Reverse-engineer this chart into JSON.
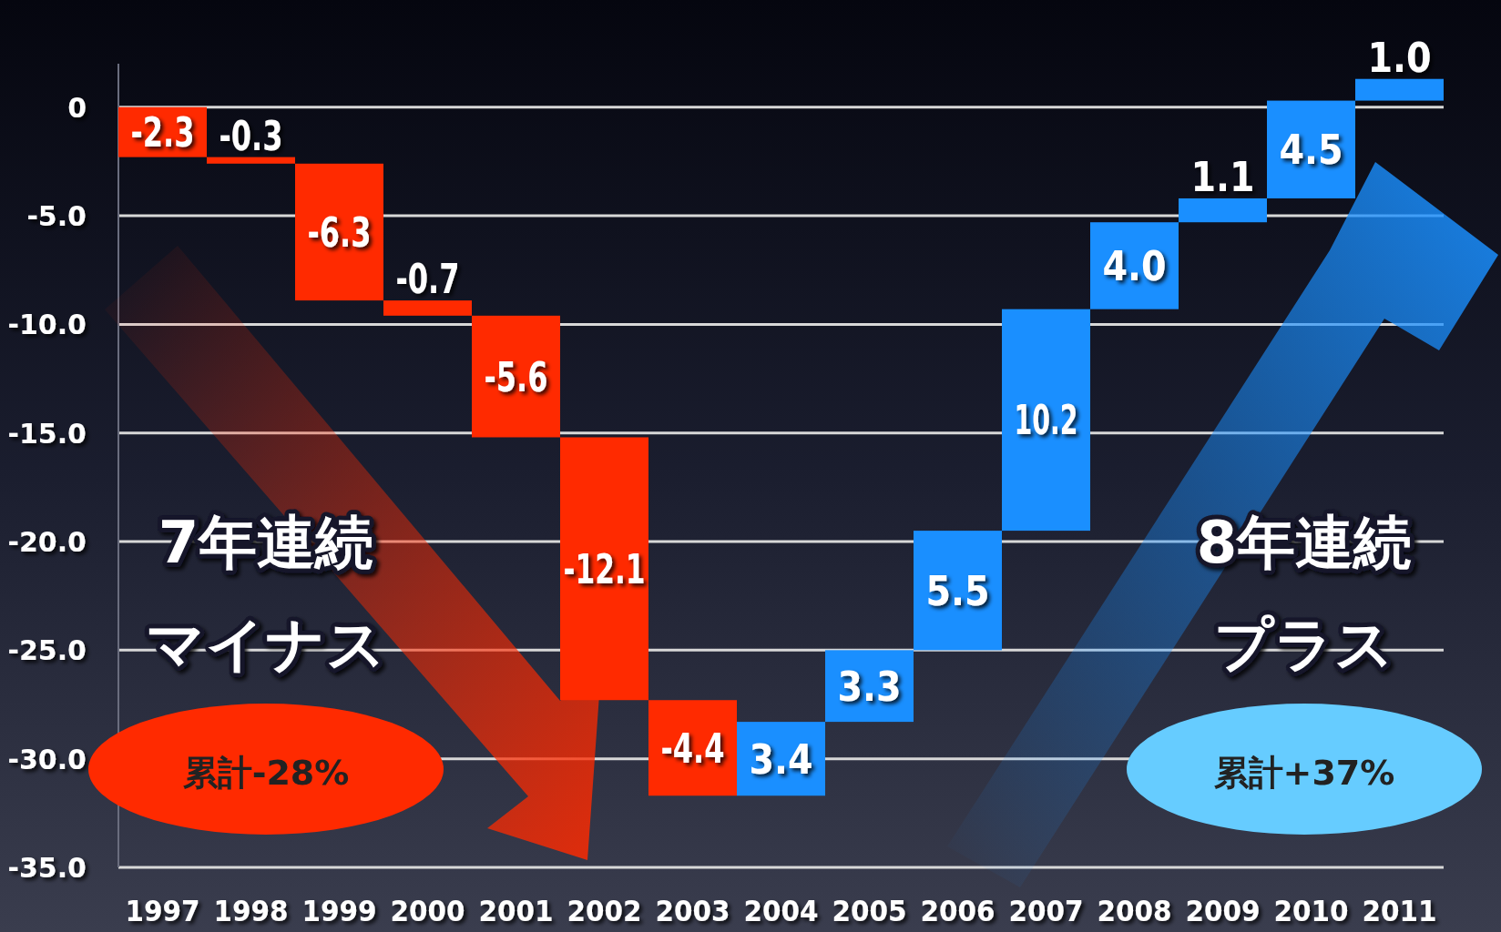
{
  "chart_data": {
    "type": "bar",
    "categories": [
      "1997",
      "1998",
      "1999",
      "2000",
      "2001",
      "2002",
      "2003",
      "2004",
      "2005",
      "2006",
      "2007",
      "2008",
      "2009",
      "2010",
      "2011"
    ],
    "values": [
      -2.3,
      -0.3,
      -6.3,
      -0.7,
      -5.6,
      -12.1,
      -4.4,
      3.4,
      3.3,
      5.5,
      10.2,
      4.0,
      1.1,
      4.5,
      1.0
    ],
    "base": [
      0,
      -2.3,
      -2.6,
      -8.9,
      -9.6,
      -15.2,
      -27.3,
      -31.7,
      -28.3,
      -25.0,
      -19.5,
      -9.3,
      -5.3,
      -4.2,
      0.3
    ],
    "colors": [
      "#ff2a00",
      "#ff2a00",
      "#ff2a00",
      "#ff2a00",
      "#ff2a00",
      "#ff2a00",
      "#ff2a00",
      "#1a8fff",
      "#1a8fff",
      "#1a8fff",
      "#1a8fff",
      "#1a8fff",
      "#1a8fff",
      "#1a8fff",
      "#1a8fff"
    ],
    "ylim": [
      -35,
      2
    ],
    "yticks": [
      0,
      {
        "value": -5,
        "label": "-5.0"
      },
      {
        "value": -10,
        "label": "-10.0"
      },
      {
        "value": -15,
        "label": "-15.0"
      },
      {
        "value": -20,
        "label": "-20.0"
      },
      {
        "value": -25,
        "label": "-25.0"
      },
      {
        "value": -30,
        "label": "-30.0"
      },
      {
        "value": -35,
        "label": "-35.0"
      }
    ],
    "grid": "y",
    "value_labels": [
      "-2.3",
      "-0.3",
      "-6.3",
      "-0.7",
      "-5.6",
      "-12.1",
      "-4.4",
      "3.4",
      "3.3",
      "5.5",
      "10.2",
      "4.0",
      "1.1",
      "4.5",
      "1.0"
    ],
    "annotations": [
      "7年連続",
      "マイナス",
      "8年連続",
      "プラス",
      "累計-28%",
      "累計+37%"
    ]
  }
}
